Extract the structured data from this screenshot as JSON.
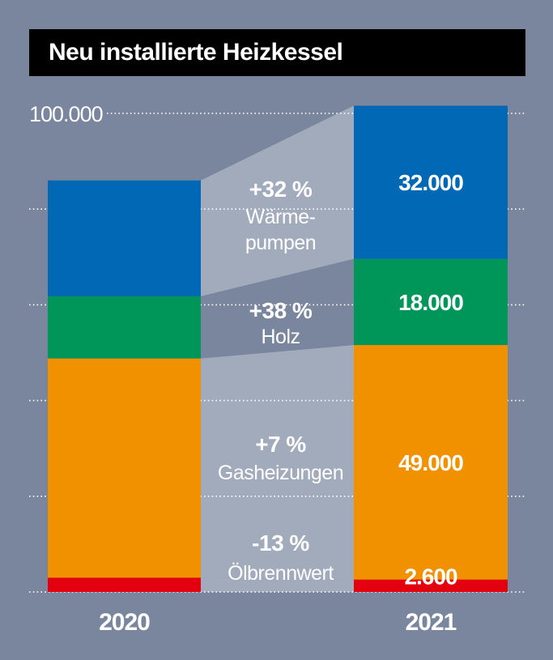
{
  "title": "Neu installierte Heizkessel",
  "colors": {
    "background": "#7a869d",
    "title_bg": "#000000",
    "waermepumpen": "#0068b4",
    "holz": "#00965a",
    "gas": "#f29100",
    "oel": "#e3000f",
    "band_light": "#a2abbc",
    "band_dark": "#7a869d",
    "text": "#ffffff"
  },
  "chart_data": {
    "type": "bar",
    "stacked": true,
    "title": "Neu installierte Heizkessel",
    "categories": [
      "2020",
      "2021"
    ],
    "ylim": [
      0,
      100000
    ],
    "y_tick_labels": [
      "100.000"
    ],
    "grid": true,
    "series": [
      {
        "name": "Ölbrennwert",
        "key": "oel",
        "values": [
          2990,
          2600
        ],
        "change_pct": "-13 %",
        "change_label": [
          "Ölbrennwert"
        ]
      },
      {
        "name": "Gasheizungen",
        "key": "gas",
        "values": [
          45800,
          49000
        ],
        "change_pct": "+7 %",
        "change_label": [
          "Gasheizungen"
        ]
      },
      {
        "name": "Holz",
        "key": "holz",
        "values": [
          13000,
          18000
        ],
        "change_pct": "+38 %",
        "change_label": [
          "Holz"
        ]
      },
      {
        "name": "Wärmepumpen",
        "key": "waermepumpen",
        "values": [
          24200,
          32000
        ],
        "change_pct": "+32 %",
        "change_label": [
          "Wärme-",
          "pumpen"
        ]
      }
    ],
    "data_labels_2021": [
      "2.600",
      "49.000",
      "18.000",
      "32.000"
    ]
  }
}
